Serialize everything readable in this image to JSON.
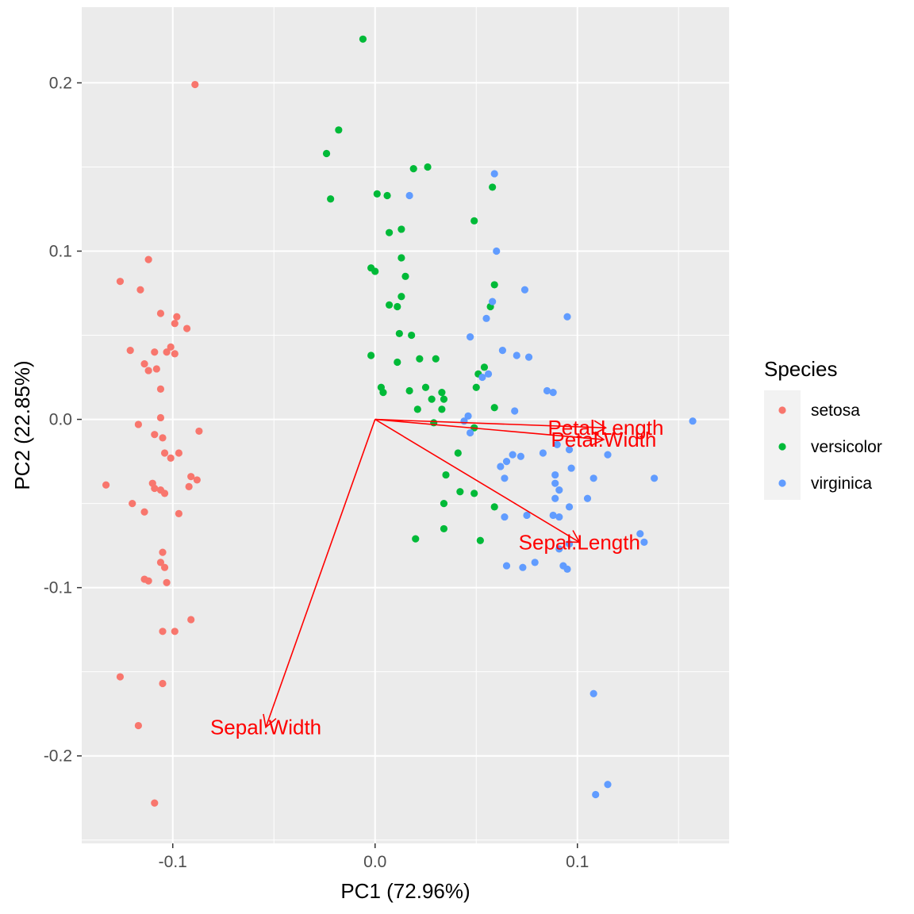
{
  "chart_data": {
    "type": "scatter",
    "subtype": "pca-biplot",
    "xlabel": "PC1 (72.96%)",
    "ylabel": "PC2 (22.85%)",
    "xlim": [
      -0.145,
      0.175
    ],
    "ylim": [
      -0.252,
      0.245
    ],
    "x_ticks": [
      -0.1,
      0.0,
      0.1
    ],
    "x_tick_labels": [
      "-0.1",
      "0.0",
      "0.1"
    ],
    "y_ticks": [
      -0.2,
      -0.1,
      0.0,
      0.1,
      0.2
    ],
    "y_tick_labels": [
      "-0.2",
      "-0.1",
      "0.0",
      "0.1",
      "0.2"
    ],
    "grid": true,
    "panel_background": "#ebebeb",
    "legend": {
      "title": "Species",
      "position": "right",
      "entries": [
        {
          "label": "setosa",
          "color": "#F8766D"
        },
        {
          "label": "versicolor",
          "color": "#00BA38"
        },
        {
          "label": "virginica",
          "color": "#619CFF"
        }
      ]
    },
    "series": [
      {
        "name": "setosa",
        "color": "#F8766D",
        "points": [
          [
            -0.089,
            0.199
          ],
          [
            -0.112,
            0.095
          ],
          [
            -0.126,
            0.082
          ],
          [
            -0.116,
            0.077
          ],
          [
            -0.106,
            0.063
          ],
          [
            -0.098,
            0.061
          ],
          [
            -0.099,
            0.057
          ],
          [
            -0.093,
            0.054
          ],
          [
            -0.121,
            0.041
          ],
          [
            -0.109,
            0.04
          ],
          [
            -0.101,
            0.043
          ],
          [
            -0.103,
            0.04
          ],
          [
            -0.099,
            0.039
          ],
          [
            -0.114,
            0.033
          ],
          [
            -0.108,
            0.03
          ],
          [
            -0.112,
            0.029
          ],
          [
            -0.106,
            0.018
          ],
          [
            -0.106,
            0.001
          ],
          [
            -0.117,
            -0.003
          ],
          [
            -0.109,
            -0.009
          ],
          [
            -0.105,
            -0.011
          ],
          [
            -0.087,
            -0.007
          ],
          [
            -0.104,
            -0.02
          ],
          [
            -0.101,
            -0.023
          ],
          [
            -0.097,
            -0.02
          ],
          [
            -0.133,
            -0.039
          ],
          [
            -0.11,
            -0.038
          ],
          [
            -0.109,
            -0.041
          ],
          [
            -0.106,
            -0.042
          ],
          [
            -0.104,
            -0.044
          ],
          [
            -0.092,
            -0.04
          ],
          [
            -0.091,
            -0.034
          ],
          [
            -0.088,
            -0.036
          ],
          [
            -0.12,
            -0.05
          ],
          [
            -0.114,
            -0.055
          ],
          [
            -0.097,
            -0.056
          ],
          [
            -0.105,
            -0.079
          ],
          [
            -0.106,
            -0.085
          ],
          [
            -0.104,
            -0.088
          ],
          [
            -0.114,
            -0.095
          ],
          [
            -0.112,
            -0.096
          ],
          [
            -0.103,
            -0.097
          ],
          [
            -0.105,
            -0.126
          ],
          [
            -0.099,
            -0.126
          ],
          [
            -0.091,
            -0.119
          ],
          [
            -0.126,
            -0.153
          ],
          [
            -0.105,
            -0.157
          ],
          [
            -0.117,
            -0.182
          ],
          [
            -0.109,
            -0.228
          ]
        ]
      },
      {
        "name": "versicolor",
        "color": "#00BA38",
        "points": [
          [
            -0.006,
            0.226
          ],
          [
            -0.018,
            0.172
          ],
          [
            -0.024,
            0.158
          ],
          [
            -0.022,
            0.131
          ],
          [
            0.001,
            0.134
          ],
          [
            0.006,
            0.133
          ],
          [
            0.019,
            0.149
          ],
          [
            0.026,
            0.15
          ],
          [
            0.058,
            0.138
          ],
          [
            0.049,
            0.118
          ],
          [
            0.013,
            0.113
          ],
          [
            0.007,
            0.111
          ],
          [
            0.013,
            0.096
          ],
          [
            -0.002,
            0.09
          ],
          [
            0.0,
            0.088
          ],
          [
            0.015,
            0.085
          ],
          [
            0.059,
            0.08
          ],
          [
            0.013,
            0.073
          ],
          [
            0.007,
            0.068
          ],
          [
            0.011,
            0.067
          ],
          [
            0.057,
            0.067
          ],
          [
            0.012,
            0.051
          ],
          [
            0.018,
            0.05
          ],
          [
            -0.002,
            0.038
          ],
          [
            0.011,
            0.034
          ],
          [
            0.022,
            0.036
          ],
          [
            0.03,
            0.036
          ],
          [
            0.054,
            0.031
          ],
          [
            0.051,
            0.027
          ],
          [
            0.003,
            0.019
          ],
          [
            0.004,
            0.016
          ],
          [
            0.017,
            0.017
          ],
          [
            0.025,
            0.019
          ],
          [
            0.033,
            0.016
          ],
          [
            0.034,
            0.012
          ],
          [
            0.05,
            0.019
          ],
          [
            0.028,
            0.012
          ],
          [
            0.021,
            0.006
          ],
          [
            0.033,
            0.006
          ],
          [
            0.059,
            0.007
          ],
          [
            0.029,
            -0.002
          ],
          [
            0.049,
            -0.005
          ],
          [
            0.041,
            -0.02
          ],
          [
            0.035,
            -0.033
          ],
          [
            0.042,
            -0.043
          ],
          [
            0.049,
            -0.044
          ],
          [
            0.034,
            -0.05
          ],
          [
            0.059,
            -0.052
          ],
          [
            0.034,
            -0.065
          ],
          [
            0.052,
            -0.072
          ],
          [
            0.02,
            -0.071
          ]
        ]
      },
      {
        "name": "virginica",
        "color": "#619CFF",
        "points": [
          [
            0.059,
            0.146
          ],
          [
            0.017,
            0.133
          ],
          [
            0.06,
            0.1
          ],
          [
            0.074,
            0.077
          ],
          [
            0.058,
            0.07
          ],
          [
            0.095,
            0.061
          ],
          [
            0.055,
            0.06
          ],
          [
            0.047,
            0.049
          ],
          [
            0.063,
            0.041
          ],
          [
            0.07,
            0.038
          ],
          [
            0.076,
            0.037
          ],
          [
            0.056,
            0.027
          ],
          [
            0.053,
            0.025
          ],
          [
            0.085,
            0.017
          ],
          [
            0.088,
            0.016
          ],
          [
            0.069,
            0.005
          ],
          [
            0.046,
            0.002
          ],
          [
            0.044,
            -0.001
          ],
          [
            0.047,
            -0.008
          ],
          [
            0.157,
            -0.001
          ],
          [
            0.09,
            -0.015
          ],
          [
            0.096,
            -0.018
          ],
          [
            0.068,
            -0.021
          ],
          [
            0.072,
            -0.022
          ],
          [
            0.083,
            -0.02
          ],
          [
            0.115,
            -0.021
          ],
          [
            0.065,
            -0.025
          ],
          [
            0.062,
            -0.028
          ],
          [
            0.097,
            -0.029
          ],
          [
            0.089,
            -0.033
          ],
          [
            0.108,
            -0.035
          ],
          [
            0.138,
            -0.035
          ],
          [
            0.089,
            -0.038
          ],
          [
            0.064,
            -0.035
          ],
          [
            0.091,
            -0.042
          ],
          [
            0.089,
            -0.047
          ],
          [
            0.105,
            -0.047
          ],
          [
            0.096,
            -0.052
          ],
          [
            0.075,
            -0.057
          ],
          [
            0.064,
            -0.058
          ],
          [
            0.088,
            -0.057
          ],
          [
            0.091,
            -0.058
          ],
          [
            0.131,
            -0.068
          ],
          [
            0.133,
            -0.073
          ],
          [
            0.096,
            -0.074
          ],
          [
            0.091,
            -0.077
          ],
          [
            0.079,
            -0.085
          ],
          [
            0.065,
            -0.087
          ],
          [
            0.073,
            -0.088
          ],
          [
            0.093,
            -0.087
          ],
          [
            0.095,
            -0.089
          ],
          [
            0.108,
            -0.163
          ],
          [
            0.115,
            -0.217
          ],
          [
            0.109,
            -0.223
          ]
        ]
      }
    ],
    "loadings": {
      "color": "#FF0000",
      "vectors": [
        {
          "label": "Petal.Length",
          "x": 0.114,
          "y": -0.005
        },
        {
          "label": "Petal.Width",
          "x": 0.113,
          "y": -0.012
        },
        {
          "label": "Sepal.Length",
          "x": 0.101,
          "y": -0.073
        },
        {
          "label": "Sepal.Width",
          "x": -0.054,
          "y": -0.183
        }
      ]
    }
  }
}
